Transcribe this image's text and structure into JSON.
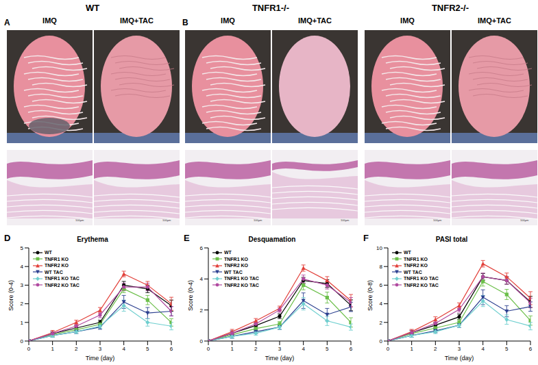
{
  "photo_panels": [
    {
      "label": "A",
      "title": "WT",
      "columns": [
        "IMQ",
        "IMQ+TAC"
      ]
    },
    {
      "label": "B",
      "title": "TNFR1-/-",
      "columns": [
        "IMQ",
        "IMQ+TAC"
      ]
    },
    {
      "title": "TNFR2-/-",
      "columns": [
        "IMQ",
        "IMQ+TAC"
      ]
    }
  ],
  "scale_bar": "100μm",
  "chart_data": [
    {
      "label": "D",
      "type": "line",
      "title": "Erythema",
      "x_label": "Time (day)",
      "y_label": "Score (0-4)",
      "x": [
        0,
        1,
        2,
        3,
        4,
        5,
        6
      ],
      "xlim": [
        0,
        6
      ],
      "xticks": [
        0,
        1,
        2,
        3,
        4,
        5,
        6
      ],
      "ylim": [
        0,
        5
      ],
      "yticks": [
        0,
        1,
        2,
        3,
        4,
        5
      ],
      "legend": "top-left",
      "series": [
        {
          "name": "WT",
          "color": "#000000",
          "marker": "circle",
          "values": [
            0,
            0.4,
            0.7,
            1.0,
            3.0,
            2.8,
            1.9
          ],
          "errors": [
            0,
            0.1,
            0.12,
            0.12,
            0.2,
            0.2,
            0.3
          ]
        },
        {
          "name": "TNFR1 KO",
          "color": "#6cbf4a",
          "marker": "square",
          "values": [
            0,
            0.35,
            0.6,
            0.9,
            2.8,
            2.2,
            1.0
          ],
          "errors": [
            0,
            0.1,
            0.1,
            0.12,
            0.2,
            0.25,
            0.2
          ]
        },
        {
          "name": "TNFR2 KO",
          "color": "#e2403a",
          "marker": "triangle",
          "values": [
            0,
            0.45,
            1.0,
            1.65,
            3.6,
            3.0,
            2.0
          ],
          "errors": [
            0,
            0.12,
            0.12,
            0.15,
            0.15,
            0.2,
            0.35
          ]
        },
        {
          "name": "WT TAC",
          "color": "#2b3f8f",
          "marker": "triangle-down",
          "values": [
            0,
            0.3,
            0.5,
            0.75,
            2.1,
            1.5,
            1.6
          ],
          "errors": [
            0,
            0.1,
            0.1,
            0.12,
            0.35,
            0.3,
            0.25
          ]
        },
        {
          "name": "TNFR1 KO TAC",
          "color": "#6fcfcf",
          "marker": "diamond",
          "values": [
            0,
            0.3,
            0.5,
            0.8,
            1.9,
            1.0,
            0.8
          ],
          "errors": [
            0,
            0.1,
            0.1,
            0.12,
            0.3,
            0.2,
            0.2
          ]
        },
        {
          "name": "TNFR2 KO TAC",
          "color": "#b04aa0",
          "marker": "circle",
          "values": [
            0,
            0.4,
            0.8,
            1.4,
            2.9,
            2.9,
            1.6
          ],
          "errors": [
            0,
            0.1,
            0.12,
            0.15,
            0.2,
            0.2,
            0.25
          ]
        }
      ]
    },
    {
      "label": "E",
      "type": "line",
      "title": "Desquamation",
      "x_label": "Time (day)",
      "y_label": "Score (0-4)",
      "x": [
        0,
        1,
        2,
        3,
        4,
        5,
        6
      ],
      "xlim": [
        0,
        6
      ],
      "xticks": [
        0,
        1,
        2,
        3,
        4,
        5,
        6
      ],
      "ylim": [
        0,
        6
      ],
      "yticks": [
        0,
        2,
        4,
        6
      ],
      "legend": "top-left",
      "series": [
        {
          "name": "WT",
          "color": "#000000",
          "marker": "circle",
          "values": [
            0,
            0.5,
            1.0,
            1.6,
            3.9,
            3.7,
            2.3
          ],
          "errors": [
            0,
            0.15,
            0.15,
            0.15,
            0.2,
            0.25,
            0.35
          ]
        },
        {
          "name": "TNFR1 KO",
          "color": "#6cbf4a",
          "marker": "square",
          "values": [
            0,
            0.4,
            0.8,
            1.1,
            3.6,
            2.8,
            1.2
          ],
          "errors": [
            0,
            0.12,
            0.12,
            0.15,
            0.3,
            0.35,
            0.3
          ]
        },
        {
          "name": "TNFR2 KO",
          "color": "#e2403a",
          "marker": "triangle",
          "values": [
            0,
            0.6,
            1.3,
            2.1,
            4.7,
            3.9,
            2.6
          ],
          "errors": [
            0,
            0.15,
            0.15,
            0.15,
            0.2,
            0.25,
            0.4
          ]
        },
        {
          "name": "WT TAC",
          "color": "#2b3f8f",
          "marker": "triangle-down",
          "values": [
            0,
            0.3,
            0.6,
            0.9,
            2.6,
            1.7,
            2.2
          ],
          "errors": [
            0,
            0.12,
            0.12,
            0.15,
            0.5,
            0.4,
            0.3
          ]
        },
        {
          "name": "TNFR1 KO TAC",
          "color": "#6fcfcf",
          "marker": "diamond",
          "values": [
            0,
            0.3,
            0.5,
            0.9,
            2.4,
            1.3,
            0.9
          ],
          "errors": [
            0,
            0.12,
            0.12,
            0.15,
            0.4,
            0.3,
            0.2
          ]
        },
        {
          "name": "TNFR2 KO TAC",
          "color": "#b04aa0",
          "marker": "circle",
          "values": [
            0,
            0.5,
            1.1,
            2.0,
            4.0,
            3.6,
            2.5
          ],
          "errors": [
            0,
            0.15,
            0.15,
            0.15,
            0.25,
            0.25,
            0.3
          ]
        }
      ]
    },
    {
      "label": "F",
      "type": "line",
      "title": "PASI total",
      "x_label": "Time (day)",
      "y_label": "Score (0-8)",
      "x": [
        0,
        1,
        2,
        3,
        4,
        5,
        6
      ],
      "xlim": [
        0,
        6
      ],
      "xticks": [
        0,
        1,
        2,
        3,
        4,
        5,
        6
      ],
      "ylim": [
        0,
        10
      ],
      "yticks": [
        0,
        2,
        4,
        6,
        8,
        10
      ],
      "legend": "top-left",
      "series": [
        {
          "name": "WT",
          "color": "#000000",
          "marker": "circle",
          "values": [
            0,
            0.9,
            1.7,
            2.6,
            6.9,
            6.5,
            4.2
          ],
          "errors": [
            0,
            0.25,
            0.25,
            0.3,
            0.35,
            0.4,
            0.6
          ]
        },
        {
          "name": "TNFR1 KO",
          "color": "#6cbf4a",
          "marker": "square",
          "values": [
            0,
            0.8,
            1.4,
            2.0,
            6.4,
            5.0,
            2.2
          ],
          "errors": [
            0,
            0.2,
            0.25,
            0.3,
            0.5,
            0.55,
            0.5
          ]
        },
        {
          "name": "TNFR2 KO",
          "color": "#e2403a",
          "marker": "triangle",
          "values": [
            0,
            1.0,
            2.3,
            3.8,
            8.3,
            6.9,
            4.6
          ],
          "errors": [
            0,
            0.25,
            0.3,
            0.3,
            0.35,
            0.4,
            0.7
          ]
        },
        {
          "name": "WT TAC",
          "color": "#2b3f8f",
          "marker": "triangle-down",
          "values": [
            0,
            0.6,
            1.1,
            1.7,
            4.7,
            3.2,
            3.7
          ],
          "errors": [
            0,
            0.2,
            0.2,
            0.25,
            0.8,
            0.6,
            0.5
          ]
        },
        {
          "name": "TNFR1 KO TAC",
          "color": "#6fcfcf",
          "marker": "diamond",
          "values": [
            0,
            0.6,
            1.0,
            1.7,
            4.3,
            2.3,
            1.6
          ],
          "errors": [
            0,
            0.2,
            0.2,
            0.25,
            0.6,
            0.5,
            0.4
          ]
        },
        {
          "name": "TNFR2 KO TAC",
          "color": "#b04aa0",
          "marker": "circle",
          "values": [
            0,
            0.9,
            1.9,
            3.4,
            6.9,
            6.5,
            4.1
          ],
          "errors": [
            0,
            0.25,
            0.25,
            0.3,
            0.4,
            0.4,
            0.5
          ]
        }
      ]
    }
  ]
}
